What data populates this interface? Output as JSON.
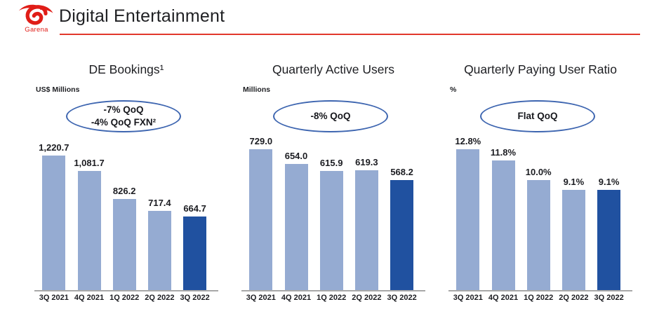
{
  "colors": {
    "accent_red": "#e2382b",
    "logo_red": "#e01d17",
    "bar_light": "#95abd2",
    "bar_dark": "#2051a0",
    "oval_border": "#3d65b0",
    "axis_gray": "#a8a8a8",
    "text_dark": "#1d1e22"
  },
  "header": {
    "logo_text": "Garena",
    "title": "Digital Entertainment"
  },
  "chart_data": [
    {
      "type": "bar",
      "title": "DE Bookings¹",
      "unit_label": "US$ Millions",
      "annotation_lines": [
        "-7% QoQ",
        "-4% QoQ FXN²"
      ],
      "categories": [
        "3Q 2021",
        "4Q 2021",
        "1Q 2022",
        "2Q 2022",
        "3Q 2022"
      ],
      "values": [
        1220.7,
        1081.7,
        826.2,
        717.4,
        664.7
      ],
      "value_labels": [
        "1,220.7",
        "1,081.7",
        "826.2",
        "717.4",
        "664.7"
      ],
      "highlight_index": 4,
      "ylim": [
        0,
        1300
      ],
      "grid": false,
      "legend": false
    },
    {
      "type": "bar",
      "title": "Quarterly Active Users",
      "unit_label": "Millions",
      "annotation_lines": [
        "-8% QoQ"
      ],
      "categories": [
        "3Q 2021",
        "4Q 2021",
        "1Q 2022",
        "2Q 2022",
        "3Q 2022"
      ],
      "values": [
        729.0,
        654.0,
        615.9,
        619.3,
        568.2
      ],
      "value_labels": [
        "729.0",
        "654.0",
        "615.9",
        "619.3",
        "568.2"
      ],
      "highlight_index": 4,
      "ylim": [
        0,
        760
      ],
      "grid": false,
      "legend": false
    },
    {
      "type": "bar",
      "title": "Quarterly Paying User Ratio",
      "unit_label": "%",
      "annotation_lines": [
        "Flat QoQ"
      ],
      "categories": [
        "3Q 2021",
        "4Q 2021",
        "1Q 2022",
        "2Q 2022",
        "3Q 2022"
      ],
      "values": [
        12.8,
        11.8,
        10.0,
        9.1,
        9.1
      ],
      "value_labels": [
        "12.8%",
        "11.8%",
        "10.0%",
        "9.1%",
        "9.1%"
      ],
      "highlight_index": 4,
      "ylim": [
        0,
        13.4
      ],
      "grid": false,
      "legend": false
    }
  ]
}
